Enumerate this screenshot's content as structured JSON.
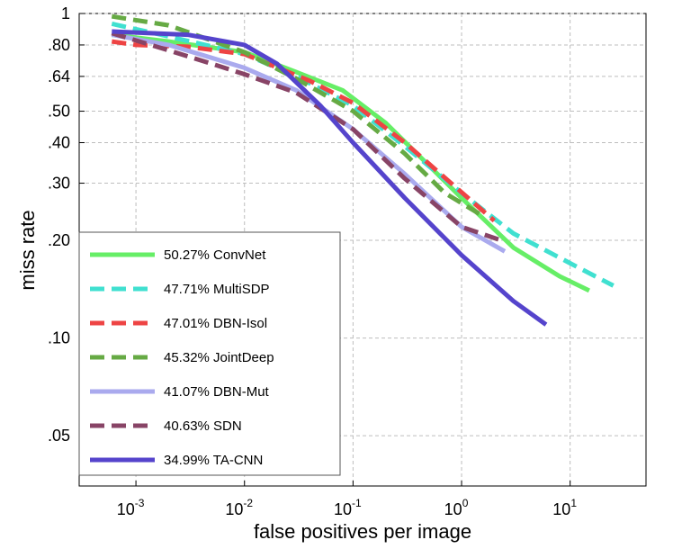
{
  "chart_data": {
    "type": "line",
    "title": "",
    "xlabel": "false positives per image",
    "ylabel": "miss rate",
    "xscale": "log",
    "yscale": "log",
    "xlim": [
      0.0003,
      50
    ],
    "ylim": [
      0.035,
      1
    ],
    "grid": true,
    "legend_position": "bottom-left",
    "x_ticks": [
      {
        "value": 0.001,
        "base": "10",
        "exp": "-3"
      },
      {
        "value": 0.01,
        "base": "10",
        "exp": "-2"
      },
      {
        "value": 0.1,
        "base": "10",
        "exp": "-1"
      },
      {
        "value": 1,
        "base": "10",
        "exp": "0"
      },
      {
        "value": 10,
        "base": "10",
        "exp": "1"
      }
    ],
    "y_ticks": [
      {
        "value": 1,
        "label": "1"
      },
      {
        "value": 0.8,
        "label": ".80"
      },
      {
        "value": 0.64,
        "label": ".64"
      },
      {
        "value": 0.5,
        "label": ".50"
      },
      {
        "value": 0.4,
        "label": ".40"
      },
      {
        "value": 0.3,
        "label": ".30"
      },
      {
        "value": 0.2,
        "label": ".20"
      },
      {
        "value": 0.1,
        "label": ".10"
      },
      {
        "value": 0.05,
        "label": ".05"
      }
    ],
    "series": [
      {
        "name": "ConvNet",
        "label": "50.27% ConvNet",
        "color": "#66ee66",
        "style": "solid",
        "points": [
          [
            0.0006,
            0.86
          ],
          [
            0.002,
            0.82
          ],
          [
            0.01,
            0.76
          ],
          [
            0.03,
            0.66
          ],
          [
            0.08,
            0.58
          ],
          [
            0.2,
            0.46
          ],
          [
            0.5,
            0.34
          ],
          [
            1,
            0.27
          ],
          [
            3,
            0.19
          ],
          [
            8,
            0.155
          ],
          [
            15,
            0.14
          ]
        ]
      },
      {
        "name": "MultiSDP",
        "label": "47.71% MultiSDP",
        "color": "#40e0d0",
        "style": "dashed",
        "points": [
          [
            0.0006,
            0.93
          ],
          [
            0.002,
            0.85
          ],
          [
            0.01,
            0.75
          ],
          [
            0.03,
            0.64
          ],
          [
            0.1,
            0.52
          ],
          [
            0.3,
            0.39
          ],
          [
            1,
            0.28
          ],
          [
            3,
            0.21
          ],
          [
            10,
            0.17
          ],
          [
            25,
            0.145
          ]
        ]
      },
      {
        "name": "DBN-Isol",
        "label": "47.01% DBN-Isol",
        "color": "#ee4444",
        "style": "dashed",
        "points": [
          [
            0.0006,
            0.82
          ],
          [
            0.001,
            0.8
          ],
          [
            0.003,
            0.79
          ],
          [
            0.01,
            0.75
          ],
          [
            0.04,
            0.62
          ],
          [
            0.1,
            0.53
          ],
          [
            0.3,
            0.4
          ],
          [
            0.8,
            0.3
          ],
          [
            2,
            0.23
          ]
        ]
      },
      {
        "name": "JointDeep",
        "label": "45.32% JointDeep",
        "color": "#66aa44",
        "style": "dashed",
        "points": [
          [
            0.0006,
            0.98
          ],
          [
            0.002,
            0.92
          ],
          [
            0.01,
            0.76
          ],
          [
            0.03,
            0.63
          ],
          [
            0.1,
            0.5
          ],
          [
            0.3,
            0.37
          ],
          [
            0.7,
            0.28
          ],
          [
            1.5,
            0.24
          ]
        ]
      },
      {
        "name": "DBN-Mut",
        "label": "41.07% DBN-Mut",
        "color": "#aaaaee",
        "style": "solid",
        "points": [
          [
            0.0006,
            0.86
          ],
          [
            0.002,
            0.8
          ],
          [
            0.005,
            0.73
          ],
          [
            0.01,
            0.68
          ],
          [
            0.03,
            0.58
          ],
          [
            0.1,
            0.44
          ],
          [
            0.3,
            0.32
          ],
          [
            1,
            0.22
          ],
          [
            2.5,
            0.185
          ]
        ]
      },
      {
        "name": "SDN",
        "label": "40.63% SDN",
        "color": "#884466",
        "style": "dashed",
        "points": [
          [
            0.0006,
            0.87
          ],
          [
            0.002,
            0.77
          ],
          [
            0.005,
            0.7
          ],
          [
            0.01,
            0.65
          ],
          [
            0.03,
            0.57
          ],
          [
            0.1,
            0.44
          ],
          [
            0.3,
            0.31
          ],
          [
            1,
            0.22
          ],
          [
            2.3,
            0.2
          ]
        ]
      },
      {
        "name": "TA-CNN",
        "label": "34.99% TA-CNN",
        "color": "#5544cc",
        "style": "solid",
        "points": [
          [
            0.0006,
            0.88
          ],
          [
            0.003,
            0.86
          ],
          [
            0.01,
            0.8
          ],
          [
            0.02,
            0.7
          ],
          [
            0.05,
            0.52
          ],
          [
            0.1,
            0.4
          ],
          [
            0.3,
            0.27
          ],
          [
            1,
            0.18
          ],
          [
            3,
            0.13
          ],
          [
            6,
            0.11
          ]
        ]
      }
    ]
  }
}
